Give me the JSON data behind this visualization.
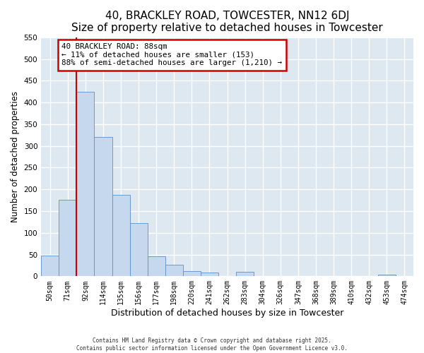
{
  "title": "40, BRACKLEY ROAD, TOWCESTER, NN12 6DJ",
  "subtitle": "Size of property relative to detached houses in Towcester",
  "xlabel": "Distribution of detached houses by size in Towcester",
  "ylabel": "Number of detached properties",
  "bar_values": [
    47,
    176,
    424,
    320,
    187,
    122,
    46,
    26,
    12,
    8,
    0,
    10,
    0,
    0,
    0,
    0,
    0,
    0,
    0,
    3,
    0
  ],
  "bar_labels": [
    "50sqm",
    "71sqm",
    "92sqm",
    "114sqm",
    "135sqm",
    "156sqm",
    "177sqm",
    "198sqm",
    "220sqm",
    "241sqm",
    "262sqm",
    "283sqm",
    "304sqm",
    "326sqm",
    "347sqm",
    "368sqm",
    "389sqm",
    "410sqm",
    "432sqm",
    "453sqm",
    "474sqm"
  ],
  "bar_color": "#c5d8ed",
  "bar_edge_color": "#5b8fc9",
  "vline_color": "#cc0000",
  "vline_x": 1.5,
  "annotation_box_text": "40 BRACKLEY ROAD: 88sqm\n← 11% of detached houses are smaller (153)\n88% of semi-detached houses are larger (1,210) →",
  "annotation_box_edge_color": "#cc0000",
  "ylim_min": 0,
  "ylim_max": 550,
  "yticks": [
    0,
    50,
    100,
    150,
    200,
    250,
    300,
    350,
    400,
    450,
    500,
    550
  ],
  "bg_color": "#dde8f0",
  "grid_color": "#ffffff",
  "footer1": "Contains HM Land Registry data © Crown copyright and database right 2025.",
  "footer2": "Contains public sector information licensed under the Open Government Licence v3.0.",
  "title_fontsize": 11,
  "subtitle_fontsize": 9.5,
  "xlabel_fontsize": 9,
  "ylabel_fontsize": 8.5
}
